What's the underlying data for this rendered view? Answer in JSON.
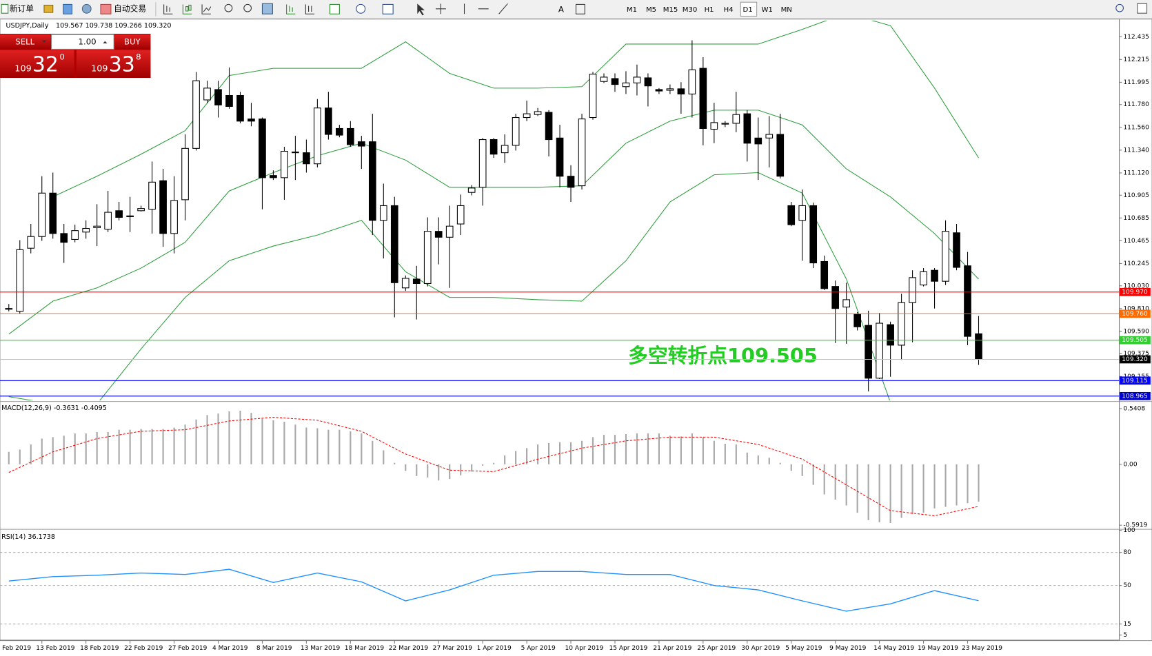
{
  "toolbar": {
    "new_order": "新订单",
    "auto_trading": "自动交易",
    "timeframes": [
      "M1",
      "M5",
      "M15",
      "M30",
      "H1",
      "H4",
      "D1",
      "W1",
      "MN"
    ],
    "active_timeframe": "D1"
  },
  "trade_panel": {
    "sell": "SELL",
    "buy": "BUY",
    "lots": "1.00",
    "bid": {
      "big": "109",
      "main": "32",
      "small": "0"
    },
    "ask": {
      "big": "109",
      "main": "33",
      "small": "8"
    }
  },
  "chart_data": {
    "type": "candlestick",
    "title": "USDJPY,Daily",
    "ohlc_text": "109.567 109.738 109.266 109.320",
    "x_labels": [
      "Feb 2019",
      "13 Feb 2019",
      "18 Feb 2019",
      "22 Feb 2019",
      "27 Feb 2019",
      "4 Mar 2019",
      "8 Mar 2019",
      "13 Mar 2019",
      "18 Mar 2019",
      "22 Mar 2019",
      "27 Mar 2019",
      "1 Apr 2019",
      "5 Apr 2019",
      "10 Apr 2019",
      "15 Apr 2019",
      "21 Apr 2019",
      "25 Apr 2019",
      "30 Apr 2019",
      "5 May 2019",
      "9 May 2019",
      "14 May 2019",
      "19 May 2019",
      "23 May 2019"
    ],
    "open": [
      109.804,
      109.783,
      110.393,
      110.506,
      110.925,
      110.535,
      110.478,
      110.549,
      110.591,
      110.577,
      110.755,
      110.705,
      110.755,
      110.769,
      111.045,
      110.535,
      110.861,
      111.357,
      111.825,
      111.925,
      111.868,
      111.868,
      111.641,
      111.641,
      111.095,
      111.074,
      111.315,
      111.315,
      111.208,
      111.747,
      111.549,
      111.549,
      111.421,
      111.421,
      110.662,
      110.804,
      110.01,
      110.095,
      110.052,
      110.556,
      110.499,
      110.627,
      110.932,
      110.981,
      111.442,
      111.315,
      111.386,
      111.655,
      111.684,
      111.705,
      111.457,
      111.088,
      110.996,
      111.655,
      112.003,
      112.031,
      111.953,
      111.989,
      112.038,
      111.925,
      111.918,
      111.932,
      111.882,
      112.13,
      111.542,
      111.591,
      111.599,
      111.691,
      111.457,
      111.457,
      111.492,
      110.804,
      110.662,
      110.804,
      110.265,
      110.024,
      109.825,
      109.755,
      109.648,
      109.138,
      109.655,
      109.457,
      109.868,
      110.038,
      110.18,
      110.074,
      110.542,
      110.223,
      109.567
    ],
    "high": [
      109.854,
      110.471,
      110.627,
      111.088,
      111.123,
      110.627,
      110.62,
      110.662,
      110.818,
      110.946,
      110.84,
      110.889,
      110.804,
      111.23,
      111.159,
      111.088,
      111.492,
      112.095,
      112.01,
      112.01,
      112.138,
      111.903,
      111.797,
      111.655,
      111.145,
      111.372,
      111.478,
      111.442,
      111.833,
      111.903,
      111.584,
      111.62,
      111.478,
      111.691,
      111.017,
      110.889,
      110.13,
      110.223,
      110.691,
      110.691,
      110.804,
      110.911,
      111.003,
      111.457,
      111.457,
      111.492,
      111.691,
      111.818,
      111.747,
      111.726,
      111.584,
      111.194,
      111.691,
      112.095,
      112.081,
      112.081,
      112.102,
      112.166,
      112.081,
      111.939,
      111.974,
      111.996,
      112.4,
      112.237,
      111.797,
      111.62,
      111.903,
      111.726,
      111.655,
      111.669,
      111.691,
      110.84,
      110.96,
      110.833,
      110.322,
      110.081,
      110.06,
      109.776,
      109.79,
      109.769,
      109.684,
      109.953,
      110.18,
      110.201,
      110.201,
      110.662,
      110.627,
      110.357,
      109.738
    ],
    "low": [
      109.783,
      109.762,
      110.343,
      110.464,
      110.485,
      110.251,
      110.45,
      110.485,
      110.414,
      110.549,
      110.662,
      110.549,
      110.747,
      110.535,
      110.407,
      110.343,
      110.662,
      111.336,
      111.797,
      111.655,
      111.74,
      111.599,
      111.57,
      110.769,
      111.052,
      110.861,
      111.052,
      111.123,
      111.173,
      111.442,
      111.464,
      111.372,
      111.159,
      110.52,
      110.294,
      109.726,
      109.981,
      109.705,
      110.024,
      110.237,
      110.01,
      110.52,
      110.903,
      110.804,
      111.265,
      111.216,
      111.336,
      111.62,
      111.669,
      111.279,
      110.981,
      110.84,
      110.96,
      111.634,
      111.989,
      111.903,
      111.882,
      111.868,
      111.762,
      111.882,
      111.882,
      111.691,
      111.655,
      111.386,
      111.407,
      111.563,
      111.513,
      111.23,
      111.052,
      111.173,
      111.067,
      110.606,
      110.272,
      110.201,
      109.989,
      109.478,
      109.471,
      109.599,
      109.01,
      109.13,
      109.152,
      109.315,
      109.485,
      110.024,
      109.811,
      110.038,
      110.18,
      109.457,
      109.266
    ],
    "close": [
      109.811,
      110.379,
      110.506,
      110.925,
      110.535,
      110.45,
      110.563,
      110.584,
      110.606,
      110.74,
      110.691,
      110.698,
      110.776,
      111.031,
      110.535,
      110.854,
      111.357,
      112.01,
      111.939,
      111.776,
      111.762,
      111.62,
      111.62,
      111.074,
      111.074,
      111.329,
      111.322,
      111.208,
      111.747,
      111.492,
      111.485,
      111.393,
      111.379,
      110.662,
      110.804,
      110.06,
      110.102,
      110.052,
      110.556,
      110.499,
      110.606,
      110.804,
      110.974,
      111.442,
      111.301,
      111.386,
      111.655,
      111.691,
      111.712,
      111.442,
      111.088,
      110.981,
      111.641,
      112.074,
      112.045,
      111.974,
      111.989,
      112.045,
      111.96,
      111.911,
      111.932,
      111.882,
      112.116,
      111.549,
      111.606,
      111.599,
      111.684,
      111.407,
      111.4,
      111.492,
      111.088,
      110.62,
      110.804,
      110.251,
      110.003,
      109.811,
      109.896,
      109.634,
      109.138,
      109.669,
      109.457,
      109.868,
      110.109,
      110.166,
      110.074,
      110.556,
      110.208,
      109.542,
      109.32
    ],
    "ylim": [
      108.924,
      112.591
    ],
    "yticks": [
      112.435,
      112.215,
      111.995,
      {
        "value": 111.78,
        "label": "111.780"
      },
      {
        "value": 111.56,
        "label": "111.560"
      },
      {
        "value": 111.34,
        "label": "111.340"
      },
      {
        "value": 111.12,
        "label": "111.120"
      },
      110.905,
      110.685,
      110.465,
      110.245,
      {
        "value": 110.03,
        "label": "110.030"
      },
      {
        "value": 109.81,
        "label": "109.810"
      },
      {
        "value": 109.59,
        "label": "109.590"
      },
      109.375,
      109.155
    ],
    "bands": {
      "color": "#2e9e3e",
      "x": [
        0,
        4,
        8,
        12,
        16,
        20,
        24,
        28,
        32,
        36,
        40,
        44,
        48,
        52,
        56,
        60,
        64,
        68,
        72,
        76,
        80,
        84,
        88
      ],
      "upper": [
        null,
        110.889,
        111.088,
        111.301,
        111.528,
        112.06,
        112.13,
        112.13,
        112.13,
        112.386,
        112.081,
        111.939,
        111.939,
        111.953,
        112.364,
        112.364,
        112.364,
        112.364,
        112.506,
        112.662,
        112.542,
        111.939,
        111.265
      ],
      "middle": [
        109.563,
        109.882,
        110.01,
        110.201,
        110.45,
        110.946,
        111.123,
        111.286,
        111.407,
        111.244,
        110.981,
        110.981,
        110.981,
        110.996,
        111.407,
        111.62,
        111.726,
        111.726,
        111.584,
        111.159,
        110.889,
        110.535,
        110.095
      ],
      "lower": [
        108.96,
        108.889,
        108.889,
        109.421,
        109.918,
        110.272,
        110.414,
        110.52,
        110.662,
        110.166,
        109.918,
        109.918,
        109.896,
        109.882,
        110.272,
        110.84,
        111.102,
        111.123,
        110.925,
        110.095,
        108.903,
        108.854,
        108.903
      ]
    },
    "levels": [
      {
        "value": 109.97,
        "label": "109.970",
        "color": "#ff0000",
        "label_color": "#ff0000"
      },
      {
        "value": 109.76,
        "label": "109.760",
        "color": "#ff6a00",
        "label_color": "#ff6a00"
      },
      {
        "value": 109.505,
        "label": "109.505",
        "color": "#33cc33",
        "label_color": "#33cc33"
      },
      {
        "value": 109.32,
        "label": "109.320",
        "color": "#c0c0c0",
        "label_color": "#000000"
      },
      {
        "value": 109.115,
        "label": "109.115",
        "color": "#0000ff",
        "label_color": "#0000ff"
      },
      {
        "value": 108.965,
        "label": "108.965",
        "color": "#0000cc",
        "label_color": "#0000cc"
      }
    ],
    "annotation": {
      "text": "多空转折点109.505",
      "color": "#22cc22"
    }
  },
  "macd": {
    "title": "MACD(12,26,9) -0.3631 -0.4095",
    "histogram_color": "#a8a8a8",
    "signal_color": "#ff0000",
    "histogram": [
      0.121,
      0.143,
      0.193,
      0.25,
      0.264,
      0.278,
      0.3,
      0.3,
      0.314,
      0.314,
      0.336,
      0.336,
      0.343,
      0.343,
      0.343,
      0.357,
      0.386,
      0.436,
      0.478,
      0.493,
      0.514,
      0.521,
      0.5,
      0.443,
      0.428,
      0.414,
      0.386,
      0.357,
      0.35,
      0.336,
      0.336,
      0.321,
      0.3,
      0.228,
      0.136,
      0.014,
      -0.064,
      -0.114,
      -0.128,
      -0.157,
      -0.143,
      -0.107,
      -0.071,
      -0.014,
      0.014,
      0.086,
      0.129,
      0.157,
      0.193,
      0.207,
      0.214,
      0.214,
      0.228,
      0.264,
      0.286,
      0.286,
      0.293,
      0.3,
      0.3,
      0.3,
      0.278,
      0.271,
      0.3,
      0.264,
      0.228,
      0.2,
      0.193,
      0.114,
      0.086,
      0.064,
      0.014,
      -0.064,
      -0.114,
      -0.2,
      -0.293,
      -0.343,
      -0.4,
      -0.471,
      -0.543,
      -0.564,
      -0.571,
      -0.521,
      -0.486,
      -0.471,
      -0.428,
      -0.414,
      -0.4,
      -0.378,
      -0.3631
    ],
    "signal": {
      "x": [
        0,
        4,
        8,
        12,
        16,
        20,
        24,
        28,
        32,
        36,
        40,
        44,
        48,
        52,
        56,
        60,
        64,
        68,
        72,
        76,
        80,
        84,
        88
      ],
      "values": [
        -0.079,
        0.121,
        0.25,
        0.321,
        0.336,
        0.421,
        0.457,
        0.428,
        0.321,
        0.1,
        -0.057,
        -0.071,
        0.05,
        0.157,
        0.228,
        0.264,
        0.264,
        0.193,
        0.05,
        -0.2,
        -0.45,
        -0.5,
        -0.4095
      ]
    },
    "ylim": [
      -0.628,
      0.6
    ],
    "yticks": [
      0.5408,
      {
        "value": 0,
        "label": "0.00"
      },
      -0.5919
    ]
  },
  "rsi": {
    "title": "RSI(14) 36.1738",
    "color": "#1e90ff",
    "x": [
      0,
      4,
      8,
      12,
      16,
      20,
      24,
      28,
      32,
      36,
      40,
      44,
      48,
      52,
      56,
      60,
      64,
      68,
      72,
      76,
      80,
      84,
      88
    ],
    "values": [
      54.0,
      58.0,
      59.3,
      61.3,
      60.0,
      64.7,
      52.7,
      61.3,
      53.3,
      36.0,
      46.0,
      59.3,
      62.7,
      62.7,
      60.0,
      60.0,
      50.0,
      46.0,
      36.0,
      26.7,
      33.3,
      45.3,
      36.17
    ],
    "ylim": [
      1.3,
      100
    ],
    "yticks": [
      100,
      80,
      50,
      15,
      5
    ],
    "levels": [
      80,
      50,
      15
    ]
  }
}
